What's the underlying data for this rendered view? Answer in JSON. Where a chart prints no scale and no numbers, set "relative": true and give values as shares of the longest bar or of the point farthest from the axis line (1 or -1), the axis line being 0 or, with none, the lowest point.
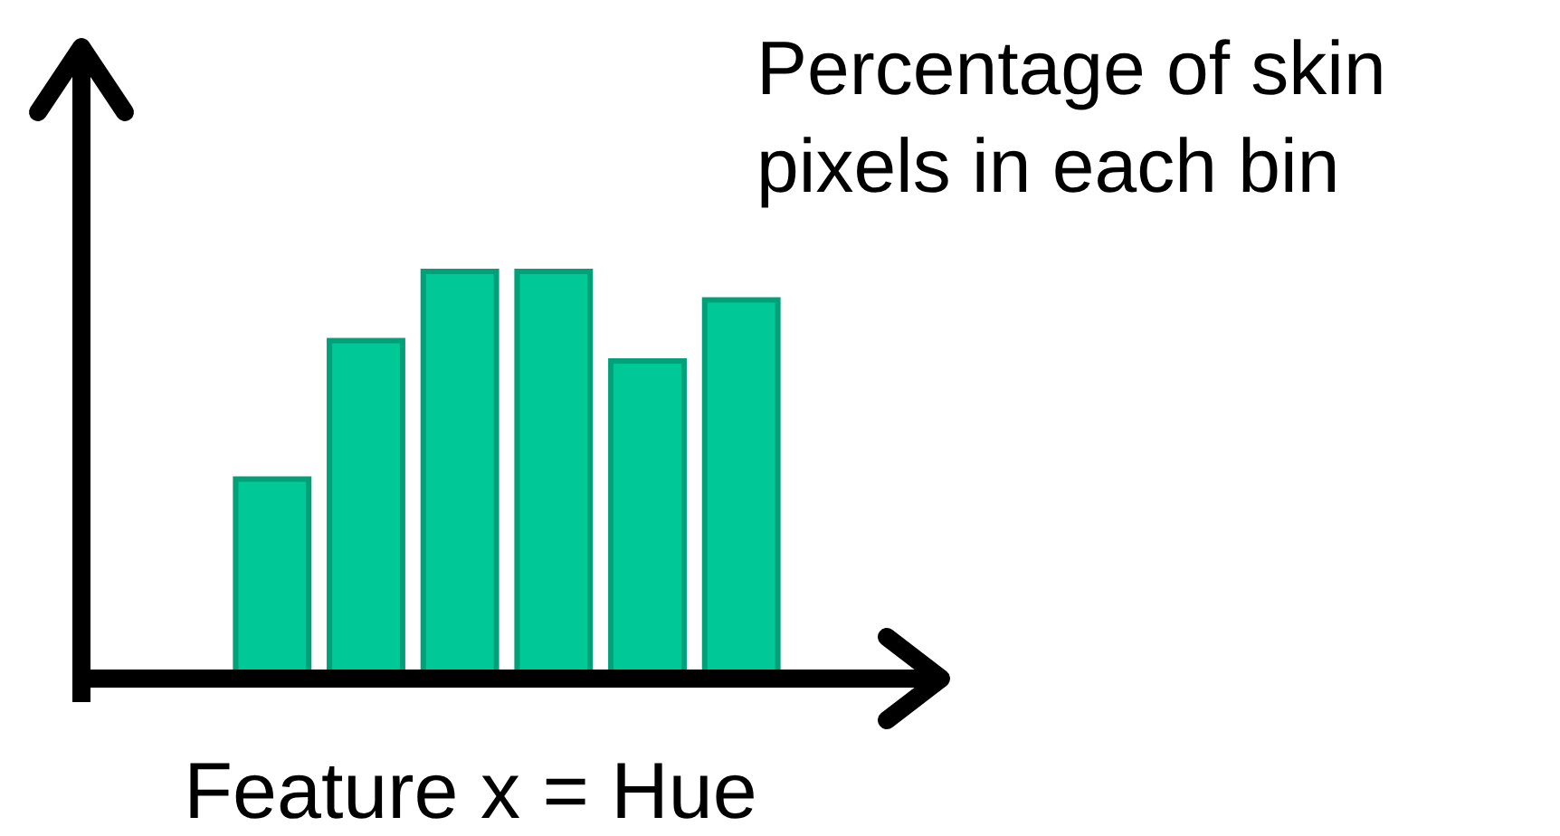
{
  "chart_data": {
    "type": "bar",
    "relative": true,
    "xlabel": "Feature x = Hue",
    "ylabel": "Percentage of skin pixels in each bin",
    "categories": [
      null,
      null,
      null,
      null,
      null,
      null
    ],
    "values": [
      0.49,
      0.83,
      1,
      1,
      0.78,
      0.93
    ],
    "color": "#00c896"
  }
}
